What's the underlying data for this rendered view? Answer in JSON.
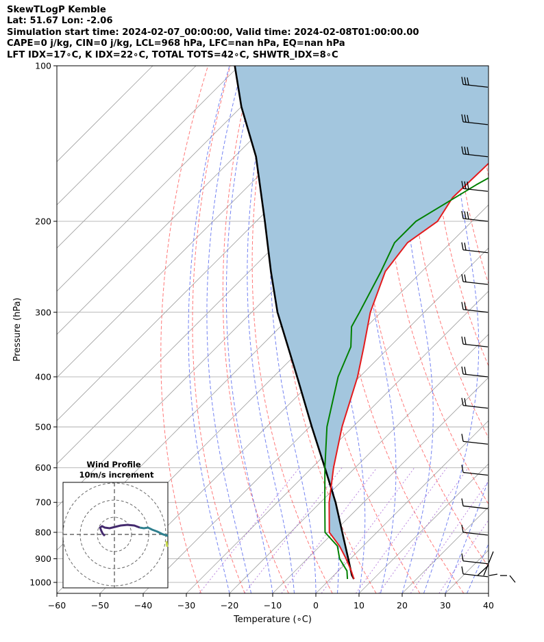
{
  "header": {
    "line1": "SkewTLogP Kemble",
    "line2": "Lat: 51.67   Lon: -2.06",
    "line3": "Simulation start time: 2024-02-07_00:00:00, Valid time: 2024-02-08T01:00:00.00",
    "line4": "CAPE=0 j/kg, CIN=0 j/kg, LCL=968 hPa, LFC=nan hPa, EQ=nan hPa",
    "line5": "LFT IDX=17∘C, K IDX=22∘C, TOTAL TOTS=42∘C, SHWTR_IDX=8∘C"
  },
  "colors": {
    "temperature": "#e41a1c",
    "dewpoint": "#008000",
    "parcel": "#000000",
    "shading": "#a3c6de",
    "dry_adiabat": "#ff6060",
    "moist_adiabat": "#5a6cf0",
    "mixing_ratio": "#9b4fd0",
    "isotherm": "#a0a0a0"
  },
  "chart_data": {
    "type": "skew-t",
    "xlabel": "Temperature (∘C)",
    "ylabel": "Pressure (hPa)",
    "xlim": [
      -60,
      40
    ],
    "ylim": [
      1050,
      100
    ],
    "y_scale": "log",
    "grid": true,
    "x_ticks": [
      "−60",
      "−50",
      "−40",
      "−30",
      "−20",
      "−10",
      "0",
      "10",
      "20",
      "30",
      "40"
    ],
    "y_ticks": [
      "100",
      "200",
      "300",
      "400",
      "500",
      "600",
      "700",
      "800",
      "900",
      "1000"
    ],
    "temperature_profile": {
      "pressure_hPa": [
        985,
        950,
        900,
        850,
        800,
        700,
        600,
        500,
        400,
        350,
        300,
        250,
        220,
        200,
        180,
        150,
        130,
        120,
        110,
        100
      ],
      "temp_C": [
        5.5,
        3,
        -1,
        -5.5,
        -11,
        -18,
        -25,
        -32.5,
        -40.5,
        -46,
        -52.5,
        -58.5,
        -60,
        -58,
        -60,
        -59.5,
        -58.5,
        -58.5,
        -59.5,
        -60.5
      ]
    },
    "dewpoint_profile": {
      "pressure_hPa": [
        985,
        950,
        900,
        850,
        800,
        700,
        600,
        500,
        400,
        350,
        320,
        300,
        250,
        220,
        200,
        170,
        160,
        140,
        120,
        100
      ],
      "dewpoint_C": [
        4,
        2,
        -2.5,
        -6,
        -12,
        -19,
        -27,
        -36,
        -45,
        -49,
        -53.5,
        -55,
        -59.5,
        -63,
        -63,
        -57.5,
        -55,
        -59.5,
        -65,
        -68
      ]
    },
    "parcel_profile": {
      "pressure_hPa": [
        985,
        968,
        900,
        800,
        700,
        600,
        500,
        400,
        300,
        250,
        200,
        150,
        120,
        100
      ],
      "temp_C": [
        5.5,
        4.1,
        -0.5,
        -8,
        -16.5,
        -27,
        -39.5,
        -54.5,
        -74,
        -85,
        -98,
        -115,
        -130,
        -141
      ]
    },
    "wind_barbs": {
      "pressure_hPa": [
        110,
        130,
        150,
        175,
        200,
        230,
        265,
        300,
        350,
        400,
        460,
        540,
        620,
        720,
        810,
        920,
        975
      ],
      "wind_speed_kt": [
        15,
        15,
        15,
        15,
        15,
        10,
        10,
        10,
        10,
        10,
        10,
        5,
        5,
        5,
        5,
        5,
        5
      ]
    },
    "hodograph": {
      "title": "Wind Profile",
      "subtitle": "10m/s increment",
      "rings_ms": [
        10,
        20,
        30
      ]
    }
  }
}
